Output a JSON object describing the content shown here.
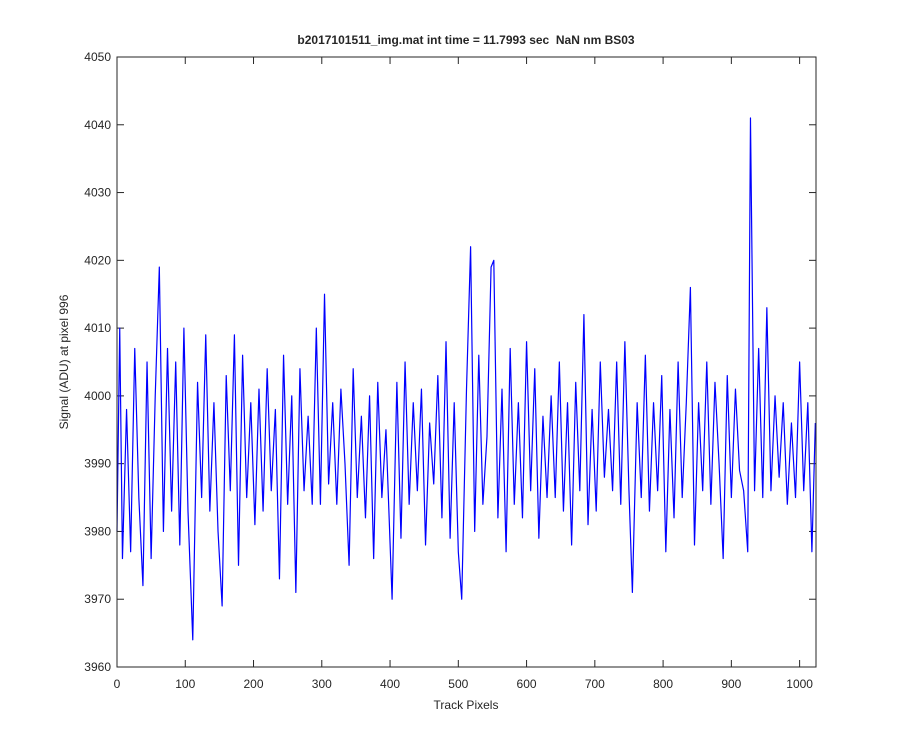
{
  "chart_data": {
    "type": "line",
    "title": "b2017101511_img.mat int time = 11.7993 sec  NaN nm BS03",
    "x_label": "Track Pixels",
    "y_label": "Signal (ADU) at pixel 996",
    "xlim": [
      0,
      1024
    ],
    "ylim": [
      3960,
      4050
    ],
    "xticks": [
      0,
      100,
      200,
      300,
      400,
      500,
      600,
      700,
      800,
      900,
      1000
    ],
    "yticks": [
      3960,
      3970,
      3980,
      3990,
      4000,
      4010,
      4020,
      4030,
      4040,
      4050
    ],
    "grid": false,
    "x": [
      0,
      4,
      8,
      14,
      20,
      26,
      32,
      38,
      44,
      50,
      56,
      62,
      68,
      74,
      80,
      86,
      92,
      98,
      104,
      111,
      118,
      124,
      130,
      136,
      142,
      148,
      154,
      160,
      166,
      172,
      178,
      184,
      190,
      196,
      202,
      208,
      214,
      220,
      226,
      232,
      238,
      244,
      250,
      256,
      262,
      268,
      274,
      280,
      286,
      292,
      298,
      304,
      310,
      316,
      322,
      328,
      334,
      340,
      346,
      352,
      358,
      364,
      370,
      376,
      382,
      388,
      394,
      403,
      410,
      416,
      422,
      428,
      434,
      440,
      446,
      452,
      458,
      464,
      470,
      476,
      482,
      488,
      494,
      500,
      505,
      512,
      518,
      524,
      530,
      536,
      542,
      548,
      552,
      558,
      564,
      570,
      576,
      582,
      588,
      594,
      600,
      606,
      612,
      618,
      624,
      630,
      636,
      642,
      648,
      654,
      660,
      666,
      672,
      678,
      684,
      690,
      696,
      702,
      708,
      714,
      720,
      726,
      732,
      738,
      744,
      750,
      755,
      762,
      768,
      774,
      780,
      786,
      792,
      798,
      804,
      810,
      816,
      822,
      828,
      834,
      840,
      846,
      852,
      858,
      864,
      870,
      876,
      882,
      888,
      894,
      900,
      906,
      912,
      918,
      924,
      928,
      934,
      940,
      946,
      952,
      958,
      964,
      970,
      976,
      982,
      988,
      994,
      1000,
      1006,
      1012,
      1018,
      1023
    ],
    "series": [
      {
        "name": "signal",
        "color": "#0000ff",
        "values": [
          3980,
          4010,
          3976,
          3998,
          3977,
          4007,
          3985,
          3972,
          4005,
          3976,
          4000,
          4019,
          3980,
          4007,
          3983,
          4005,
          3978,
          4010,
          3983,
          3964,
          4002,
          3985,
          4009,
          3983,
          3999,
          3980,
          3969,
          4003,
          3986,
          4009,
          3975,
          4006,
          3985,
          3999,
          3981,
          4001,
          3983,
          4004,
          3986,
          3998,
          3973,
          4006,
          3984,
          4000,
          3971,
          4004,
          3986,
          3997,
          3984,
          4010,
          3984,
          4015,
          3987,
          3999,
          3984,
          4001,
          3990,
          3975,
          4004,
          3985,
          3997,
          3982,
          4000,
          3976,
          4002,
          3985,
          3995,
          3970,
          4002,
          3979,
          4005,
          3984,
          3999,
          3986,
          4001,
          3978,
          3996,
          3987,
          4003,
          3982,
          4008,
          3979,
          3999,
          3977,
          3970,
          4001,
          4022,
          3980,
          4006,
          3984,
          3994,
          4019,
          4020,
          3982,
          4001,
          3977,
          4007,
          3984,
          3999,
          3982,
          4008,
          3986,
          4004,
          3979,
          3997,
          3985,
          4000,
          3985,
          4005,
          3983,
          3999,
          3978,
          4002,
          3986,
          4012,
          3981,
          3998,
          3983,
          4005,
          3988,
          3998,
          3986,
          4005,
          3984,
          4008,
          3986,
          3971,
          3999,
          3985,
          4006,
          3983,
          3999,
          3986,
          4003,
          3977,
          3998,
          3982,
          4005,
          3985,
          3999,
          4016,
          3978,
          3999,
          3986,
          4005,
          3984,
          4002,
          3990,
          3976,
          4003,
          3985,
          4001,
          3989,
          3986,
          3977,
          4041,
          3986,
          4007,
          3985,
          4013,
          3986,
          4000,
          3988,
          3999,
          3984,
          3996,
          3985,
          4005,
          3986,
          3999,
          3977,
          3996
        ]
      }
    ]
  }
}
